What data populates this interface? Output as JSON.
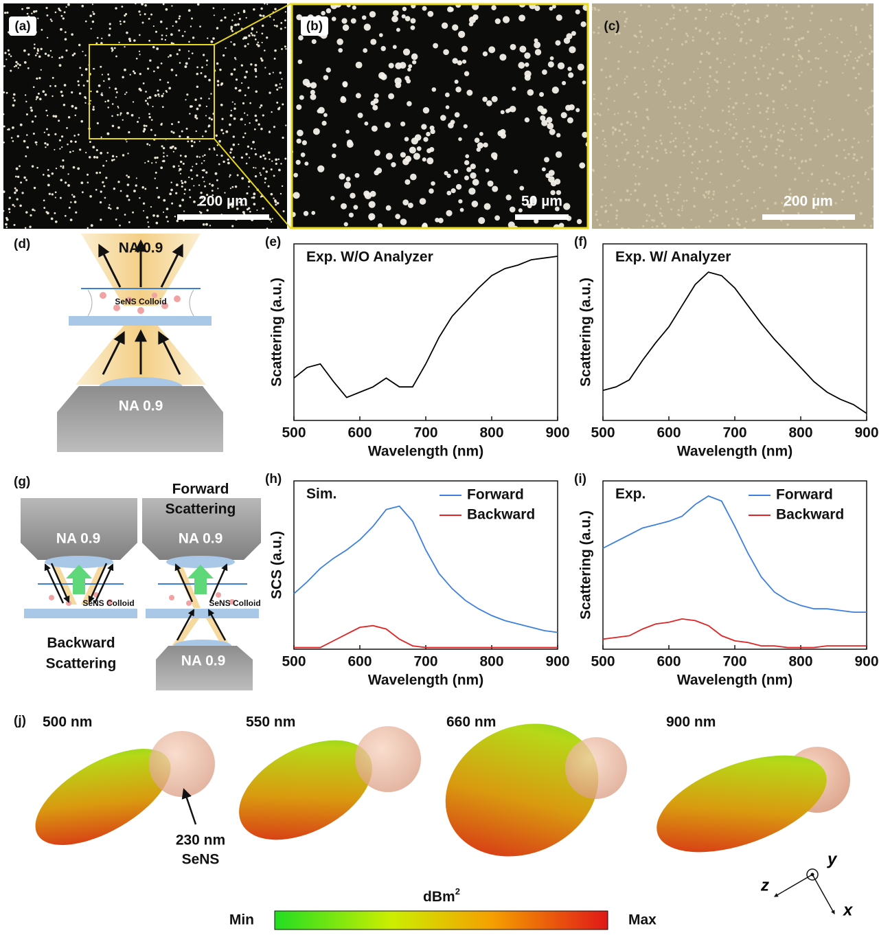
{
  "panels": {
    "a": {
      "label": "(a)",
      "scale": "200 µm"
    },
    "b": {
      "label": "(b)",
      "scale": "50 µm"
    },
    "c": {
      "label": "(c)",
      "scale": "200 µm"
    },
    "d": {
      "label": "(d)",
      "top": "NA 0.9",
      "sample": "SeNS Colloid",
      "objective": "NA 0.9"
    },
    "g": {
      "label": "(g)",
      "left_objective": "NA 0.9",
      "left_sample": "SeNS Colloid",
      "backward": [
        "Backward",
        "Scattering"
      ],
      "forward": [
        "Forward",
        "Scattering"
      ],
      "right_objective": "NA 0.9",
      "right_sample": "SeNS Colloid",
      "bottom_objective": "NA 0.9"
    },
    "j": {
      "label": "(j)",
      "wavelengths": [
        "500 nm",
        "550 nm",
        "660 nm",
        "900 nm"
      ],
      "annotation": [
        "230 nm",
        "SeNS"
      ],
      "colorbar": {
        "unit": "dBm",
        "unit_sup": "2",
        "min": "Min",
        "max": "Max"
      },
      "axes": {
        "z": "z",
        "y": "y",
        "x": "x"
      }
    }
  },
  "chart_data": [
    {
      "type": "line",
      "panel_label": "(e)",
      "annotation": "Exp. W/O Analyzer",
      "xlabel": "Wavelength (nm)",
      "ylabel": "Scattering (a.u.)",
      "x": [
        500,
        520,
        540,
        560,
        580,
        600,
        620,
        640,
        660,
        680,
        700,
        720,
        740,
        760,
        780,
        800,
        820,
        840,
        860,
        880,
        900
      ],
      "values": [
        24,
        30,
        32,
        22,
        13,
        16,
        19,
        24,
        19,
        19,
        32,
        47,
        59,
        67,
        75,
        82,
        86,
        88,
        91,
        92,
        93
      ],
      "color": "#000000",
      "xlim": [
        500,
        900
      ],
      "xticks": [
        500,
        600,
        700,
        800,
        900
      ],
      "ylim": [
        0,
        100
      ]
    },
    {
      "type": "line",
      "panel_label": "(f)",
      "annotation": "Exp. W/ Analyzer",
      "xlabel": "Wavelength (nm)",
      "ylabel": "Scattering (a.u.)",
      "x": [
        500,
        520,
        540,
        560,
        580,
        600,
        620,
        640,
        660,
        680,
        700,
        720,
        740,
        760,
        780,
        800,
        820,
        840,
        860,
        880,
        900
      ],
      "values": [
        17,
        19,
        23,
        34,
        44,
        53,
        65,
        77,
        84,
        82,
        75,
        65,
        55,
        46,
        38,
        30,
        22,
        16,
        12,
        9,
        4
      ],
      "color": "#000000",
      "xlim": [
        500,
        900
      ],
      "xticks": [
        500,
        600,
        700,
        800,
        900
      ],
      "ylim": [
        0,
        100
      ]
    },
    {
      "type": "line",
      "panel_label": "(h)",
      "annotation": "Sim.",
      "xlabel": "Wavelength (nm)",
      "ylabel": "SCS (a.u.)",
      "x": [
        500,
        520,
        540,
        560,
        580,
        600,
        620,
        640,
        660,
        680,
        700,
        720,
        740,
        760,
        780,
        800,
        820,
        840,
        860,
        880,
        900
      ],
      "series": [
        {
          "name": "Forward",
          "color": "#3c7fe0",
          "values": [
            33,
            40,
            48,
            54,
            59,
            65,
            73,
            83,
            85,
            76,
            59,
            45,
            36,
            29,
            24,
            20,
            17,
            15,
            13,
            11,
            10
          ]
        },
        {
          "name": "Backward",
          "color": "#e02424",
          "values": [
            1,
            1,
            1,
            5,
            9,
            13,
            14,
            12,
            6,
            2,
            1,
            1,
            1,
            1,
            1,
            1,
            1,
            1,
            1,
            1,
            1
          ]
        }
      ],
      "xlim": [
        500,
        900
      ],
      "xticks": [
        500,
        600,
        700,
        800,
        900
      ],
      "ylim": [
        0,
        100
      ]
    },
    {
      "type": "line",
      "panel_label": "(i)",
      "annotation": "Exp.",
      "xlabel": "Wavelength (nm)",
      "ylabel": "Scattering (a.u.)",
      "x": [
        500,
        520,
        540,
        560,
        580,
        600,
        620,
        640,
        660,
        680,
        700,
        720,
        740,
        760,
        780,
        800,
        820,
        840,
        860,
        880,
        900
      ],
      "series": [
        {
          "name": "Forward",
          "color": "#3c7fe0",
          "values": [
            60,
            64,
            68,
            72,
            74,
            76,
            79,
            86,
            91,
            88,
            73,
            57,
            43,
            34,
            29,
            26,
            24,
            24,
            23,
            22,
            22
          ]
        },
        {
          "name": "Backward",
          "color": "#e02424",
          "values": [
            6,
            7,
            8,
            12,
            15,
            16,
            18,
            17,
            14,
            8,
            5,
            4,
            2,
            2,
            1,
            1,
            1,
            2,
            2,
            2,
            2
          ]
        }
      ],
      "xlim": [
        500,
        900
      ],
      "xticks": [
        500,
        600,
        700,
        800,
        900
      ],
      "ylim": [
        0,
        100
      ]
    }
  ]
}
